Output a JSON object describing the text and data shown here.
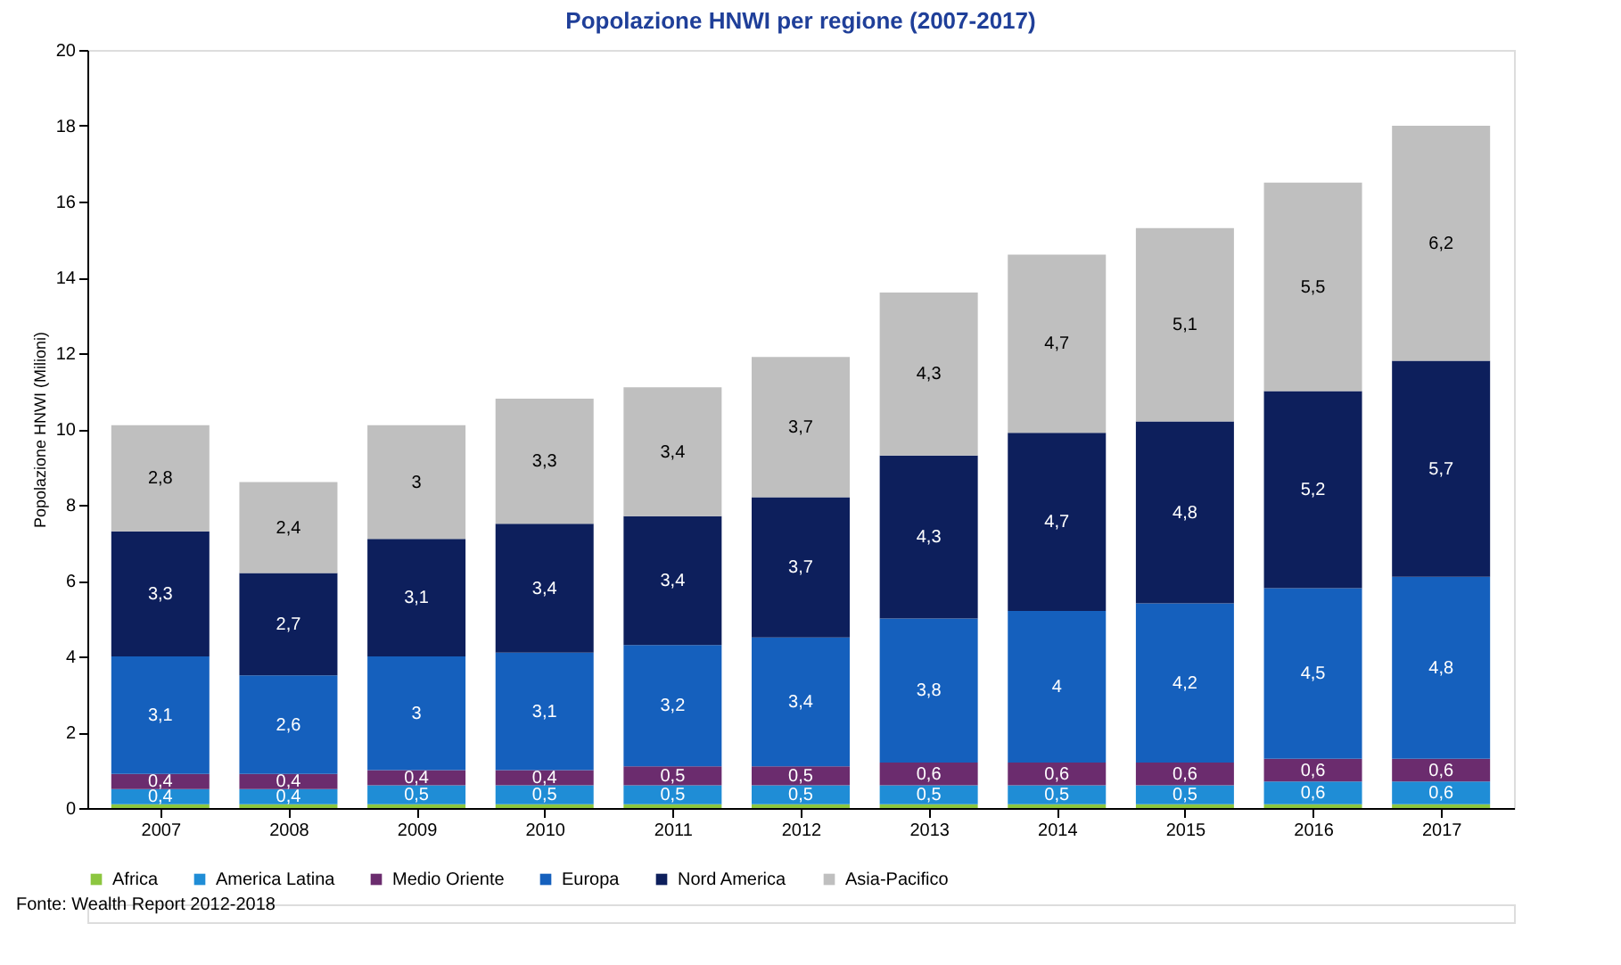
{
  "chart_data": {
    "type": "bar",
    "stacked": true,
    "title": "Popolazione HNWI per regione (2007-2017)",
    "ylabel": "Popolazione HNWI (Milioni)",
    "categories": [
      "2007",
      "2008",
      "2009",
      "2010",
      "2011",
      "2012",
      "2013",
      "2014",
      "2015",
      "2016",
      "2017"
    ],
    "ylim": [
      0,
      20
    ],
    "yticks": [
      0,
      2,
      4,
      6,
      8,
      10,
      12,
      14,
      16,
      18,
      20
    ],
    "grid": false,
    "legend": "bottom",
    "series": [
      {
        "name": "Africa",
        "color": "#8cc63f",
        "values": [
          0.1,
          0.1,
          0.1,
          0.1,
          0.1,
          0.1,
          0.1,
          0.1,
          0.1,
          0.1,
          0.1
        ]
      },
      {
        "name": "America Latina",
        "color": "#1f8dd6",
        "values": [
          0.4,
          0.4,
          0.5,
          0.5,
          0.5,
          0.5,
          0.5,
          0.5,
          0.5,
          0.6,
          0.6
        ],
        "value_labels": [
          "0,4",
          "0,4",
          "0,5",
          "0,5",
          "0,5",
          "0,5",
          "0,5",
          "0,5",
          "0,5",
          "0,6",
          "0,6"
        ]
      },
      {
        "name": "Medio Oriente",
        "color": "#6b2c6e",
        "values": [
          0.4,
          0.4,
          0.4,
          0.4,
          0.5,
          0.5,
          0.6,
          0.6,
          0.6,
          0.6,
          0.6
        ],
        "value_labels": [
          "0,4",
          "0,4",
          "0,4",
          "0,4",
          "0,5",
          "0,5",
          "0,6",
          "0,6",
          "0,6",
          "0,6",
          "0,6"
        ]
      },
      {
        "name": "Europa",
        "color": "#1560bd",
        "values": [
          3.1,
          2.6,
          3,
          3.1,
          3.2,
          3.4,
          3.8,
          4,
          4.2,
          4.5,
          4.8
        ],
        "value_labels": [
          "3,1",
          "2,6",
          "3",
          "3,1",
          "3,2",
          "3,4",
          "3,8",
          "4",
          "4,2",
          "4,5",
          "4,8"
        ]
      },
      {
        "name": "Nord America",
        "color": "#0d1f5c",
        "values": [
          3.3,
          2.7,
          3.1,
          3.4,
          3.4,
          3.7,
          4.3,
          4.7,
          4.8,
          5.2,
          5.7
        ],
        "value_labels": [
          "3,3",
          "2,7",
          "3,1",
          "3,4",
          "3,4",
          "3,7",
          "4,3",
          "4,7",
          "4,8",
          "5,2",
          "5,7"
        ]
      },
      {
        "name": "Asia-Pacifico",
        "color": "#bfbfbf",
        "values": [
          2.8,
          2.4,
          3,
          3.3,
          3.4,
          3.7,
          4.3,
          4.7,
          5.1,
          5.5,
          6.2
        ],
        "value_labels": [
          "2,8",
          "2,4",
          "3",
          "3,3",
          "3,4",
          "3,7",
          "4,3",
          "4,7",
          "5,1",
          "5,5",
          "6,2"
        ]
      }
    ],
    "annotations": [
      "Fonte: Wealth Report 2012-2018"
    ]
  }
}
